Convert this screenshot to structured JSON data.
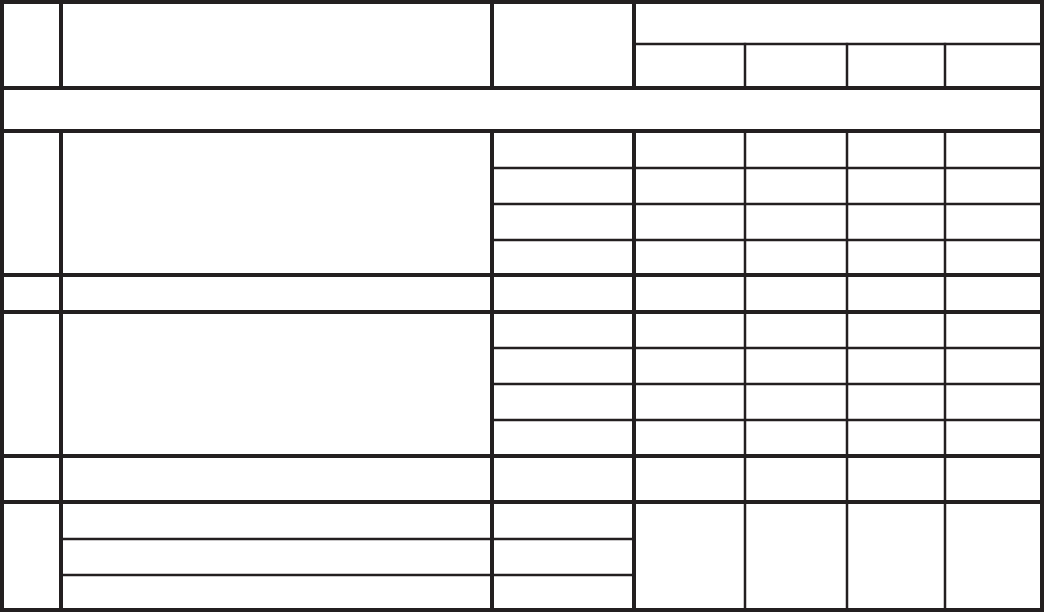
{
  "table": {
    "line_color": "#231f20",
    "background": "#ffffff"
  }
}
